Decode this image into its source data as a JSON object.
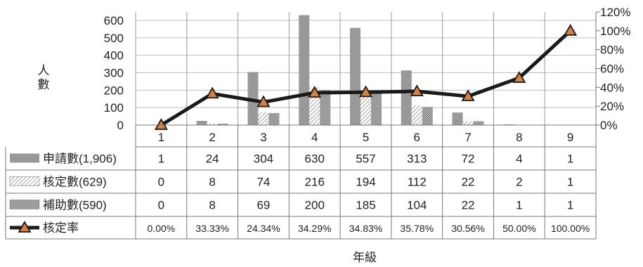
{
  "chart_data": {
    "type": "bar",
    "categories": [
      "1",
      "2",
      "3",
      "4",
      "5",
      "6",
      "7",
      "8",
      "9"
    ],
    "xlabel": "年級",
    "ylabel": "人\n數",
    "ylim": [
      0,
      600
    ],
    "y_ticks": [
      "600",
      "500",
      "400",
      "300",
      "200",
      "100",
      "0"
    ],
    "y2lim": [
      0,
      1.2
    ],
    "y2_ticks": [
      "120%",
      "100%",
      "80%",
      "60%",
      "40%",
      "20%",
      "0%"
    ],
    "legend_position": "data-table",
    "series": [
      {
        "name": "申請數(1,906)",
        "kind": "bar",
        "pattern": "solid",
        "color": "#999999",
        "values": [
          1,
          24,
          304,
          630,
          557,
          313,
          72,
          4,
          1
        ]
      },
      {
        "name": "核定數(629)",
        "kind": "bar",
        "pattern": "diagonal",
        "color": "#b3b3b3",
        "values": [
          0,
          8,
          74,
          216,
          194,
          112,
          22,
          2,
          1
        ]
      },
      {
        "name": "補助數(590)",
        "kind": "bar",
        "pattern": "dotted",
        "color": "#9a9a9a",
        "values": [
          0,
          8,
          69,
          200,
          185,
          104,
          22,
          1,
          1
        ]
      },
      {
        "name": "核定率",
        "kind": "line",
        "axis": "right",
        "color": "#222222",
        "marker_color": "#d9803a",
        "values": [
          0,
          0.3333,
          0.2434,
          0.3429,
          0.3483,
          0.3578,
          0.3056,
          0.5,
          1.0
        ],
        "labels": [
          "0.00%",
          "33.33%",
          "24.34%",
          "34.29%",
          "34.83%",
          "35.78%",
          "30.56%",
          "50.00%",
          "100.00%"
        ]
      }
    ],
    "table_rows": [
      [
        "1",
        "24",
        "304",
        "630",
        "557",
        "313",
        "72",
        "4",
        "1"
      ],
      [
        "0",
        "8",
        "74",
        "216",
        "194",
        "112",
        "22",
        "2",
        "1"
      ],
      [
        "0",
        "8",
        "69",
        "200",
        "185",
        "104",
        "22",
        "1",
        "1"
      ],
      [
        "0.00%",
        "33.33%",
        "24.34%",
        "34.29%",
        "34.83%",
        "35.78%",
        "30.56%",
        "50.00%",
        "100.00%"
      ]
    ]
  }
}
